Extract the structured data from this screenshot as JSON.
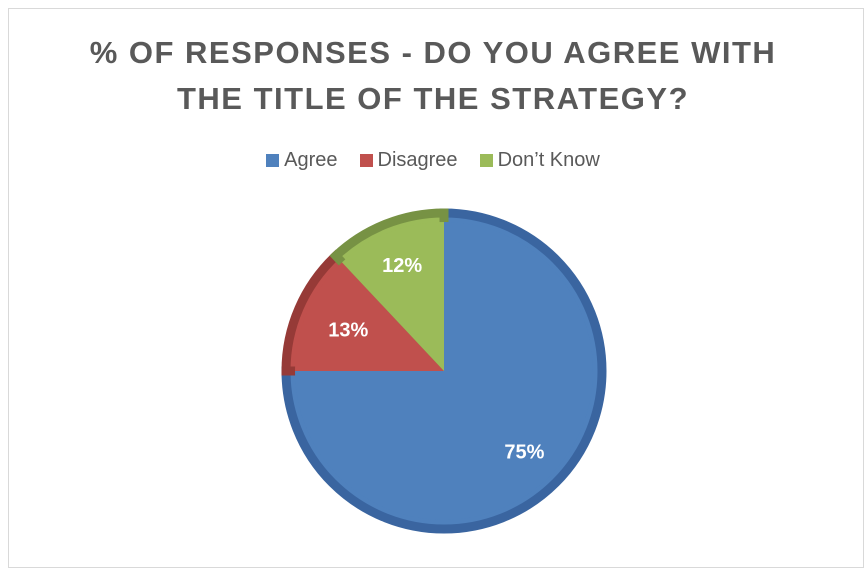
{
  "chart_data": {
    "type": "pie",
    "title_line1": "% OF RESPONSES - DO YOU AGREE WITH",
    "title_line2": "THE TITLE OF THE STRATEGY?",
    "legend_position": "top",
    "categories": [
      "Agree",
      "Disagree",
      "Don’t Know"
    ],
    "values": [
      75,
      13,
      12
    ],
    "value_labels": [
      "75%",
      "13%",
      "12%"
    ],
    "colors": [
      "#4F81BD",
      "#C0504D",
      "#9BBB59"
    ],
    "border_colors": [
      "#3A65A0",
      "#963A37",
      "#779244"
    ]
  }
}
